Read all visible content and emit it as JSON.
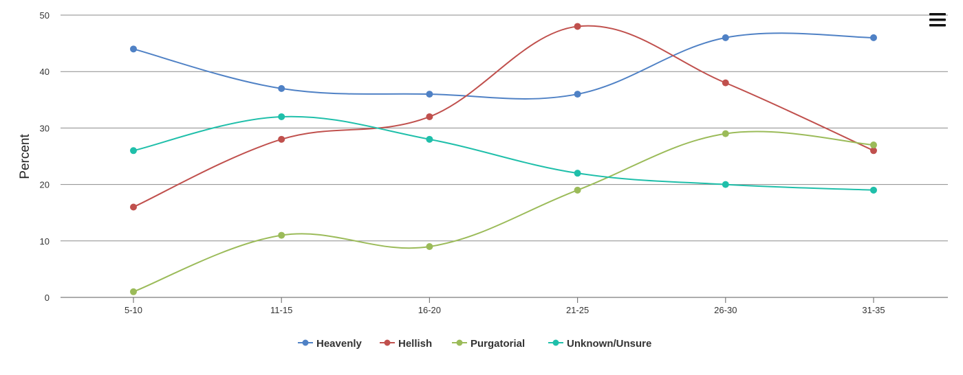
{
  "chart_data": {
    "type": "line",
    "title": "",
    "xlabel": "",
    "ylabel": "Percent",
    "categories": [
      "5-10",
      "11-15",
      "16-20",
      "21-25",
      "26-30",
      "31-35"
    ],
    "ylim": [
      0,
      50
    ],
    "yticks": [
      0,
      10,
      20,
      30,
      40,
      50
    ],
    "grid": true,
    "legend": "bottom-center",
    "smooth": true,
    "series": [
      {
        "name": "Heavenly",
        "color": "#4f81c5",
        "values": [
          44,
          37,
          36,
          36,
          46,
          46
        ]
      },
      {
        "name": "Hellish",
        "color": "#c0504d",
        "values": [
          16,
          28,
          32,
          48,
          38,
          26
        ]
      },
      {
        "name": "Purgatorial",
        "color": "#9bbb59",
        "values": [
          1,
          11,
          9,
          19,
          29,
          27
        ]
      },
      {
        "name": "Unknown/Unsure",
        "color": "#1fbfaa",
        "values": [
          26,
          32,
          28,
          22,
          20,
          19
        ]
      }
    ]
  },
  "menu": {
    "icon": "hamburger-menu-icon"
  }
}
